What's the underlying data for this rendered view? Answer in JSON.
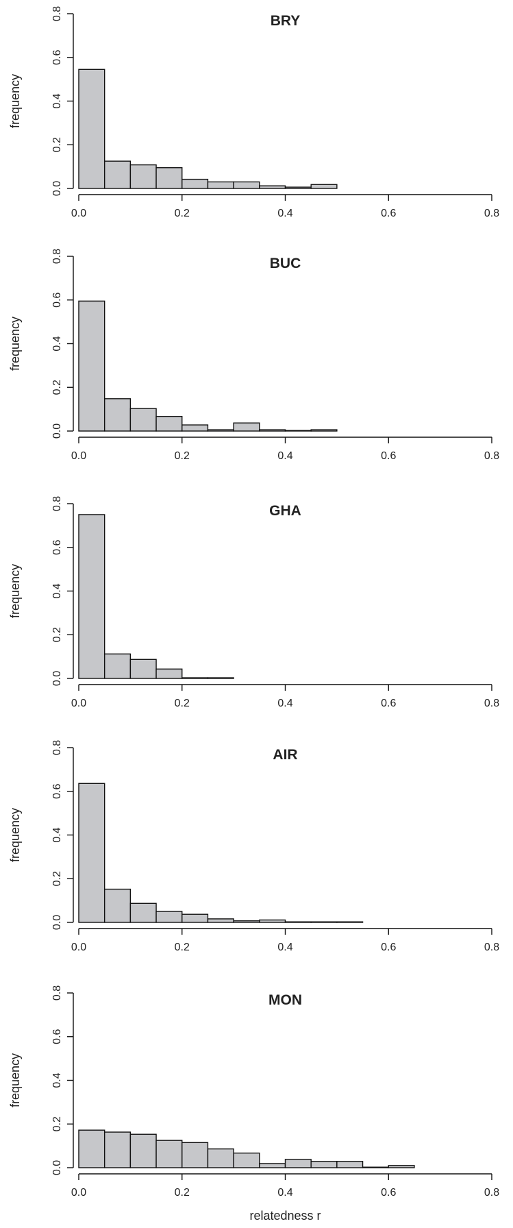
{
  "chart_data": [
    {
      "type": "bar",
      "title": "BRY",
      "ylabel": "frequency",
      "xlabel": "",
      "bin_width": 0.05,
      "x": [
        0.0,
        0.05,
        0.1,
        0.15,
        0.2,
        0.25,
        0.3,
        0.35,
        0.4,
        0.45
      ],
      "values": [
        0.545,
        0.125,
        0.108,
        0.095,
        0.042,
        0.03,
        0.03,
        0.012,
        0.006,
        0.018
      ],
      "xlim": [
        0,
        0.8
      ],
      "ylim": [
        0,
        0.8
      ],
      "xticks": [
        "0.0",
        "0.2",
        "0.4",
        "0.6",
        "0.8"
      ],
      "yticks": [
        "0.0",
        "0.2",
        "0.4",
        "0.6",
        "0.8"
      ],
      "grid": false
    },
    {
      "type": "bar",
      "title": "BUC",
      "ylabel": "frequency",
      "xlabel": "",
      "bin_width": 0.05,
      "x": [
        0.0,
        0.05,
        0.1,
        0.15,
        0.2,
        0.25,
        0.3,
        0.35,
        0.4,
        0.45
      ],
      "values": [
        0.595,
        0.148,
        0.103,
        0.067,
        0.028,
        0.006,
        0.037,
        0.006,
        0.0,
        0.006
      ],
      "xlim": [
        0,
        0.8
      ],
      "ylim": [
        0,
        0.8
      ],
      "xticks": [
        "0.0",
        "0.2",
        "0.4",
        "0.6",
        "0.8"
      ],
      "yticks": [
        "0.0",
        "0.2",
        "0.4",
        "0.6",
        "0.8"
      ],
      "grid": false
    },
    {
      "type": "bar",
      "title": "GHA",
      "ylabel": "frequency",
      "xlabel": "",
      "bin_width": 0.05,
      "x": [
        0.0,
        0.05,
        0.1,
        0.15,
        0.2,
        0.25
      ],
      "values": [
        0.75,
        0.112,
        0.087,
        0.043,
        0.003,
        0.003
      ],
      "xlim": [
        0,
        0.8
      ],
      "ylim": [
        0,
        0.8
      ],
      "xticks": [
        "0.0",
        "0.2",
        "0.4",
        "0.6",
        "0.8"
      ],
      "yticks": [
        "0.0",
        "0.2",
        "0.4",
        "0.6",
        "0.8"
      ],
      "grid": false
    },
    {
      "type": "bar",
      "title": "AIR",
      "ylabel": "frequency",
      "xlabel": "",
      "bin_width": 0.05,
      "x": [
        0.0,
        0.05,
        0.1,
        0.15,
        0.2,
        0.25,
        0.3,
        0.35,
        0.4,
        0.45,
        0.5
      ],
      "values": [
        0.636,
        0.152,
        0.087,
        0.05,
        0.037,
        0.016,
        0.007,
        0.011,
        0.002,
        0.002,
        0.002
      ],
      "xlim": [
        0,
        0.8
      ],
      "ylim": [
        0,
        0.8
      ],
      "xticks": [
        "0.0",
        "0.2",
        "0.4",
        "0.6",
        "0.8"
      ],
      "yticks": [
        "0.0",
        "0.2",
        "0.4",
        "0.6",
        "0.8"
      ],
      "grid": false
    },
    {
      "type": "bar",
      "title": "MON",
      "ylabel": "frequency",
      "xlabel": "relatedness r",
      "bin_width": 0.05,
      "x": [
        0.0,
        0.05,
        0.1,
        0.15,
        0.2,
        0.25,
        0.3,
        0.35,
        0.4,
        0.45,
        0.5,
        0.55,
        0.6
      ],
      "values": [
        0.172,
        0.163,
        0.153,
        0.125,
        0.115,
        0.086,
        0.067,
        0.019,
        0.038,
        0.029,
        0.029,
        0.0,
        0.01
      ],
      "xlim": [
        0,
        0.8
      ],
      "ylim": [
        0,
        0.8
      ],
      "xticks": [
        "0.0",
        "0.2",
        "0.4",
        "0.6",
        "0.8"
      ],
      "yticks": [
        "0.0",
        "0.2",
        "0.4",
        "0.6",
        "0.8"
      ],
      "grid": false
    }
  ]
}
